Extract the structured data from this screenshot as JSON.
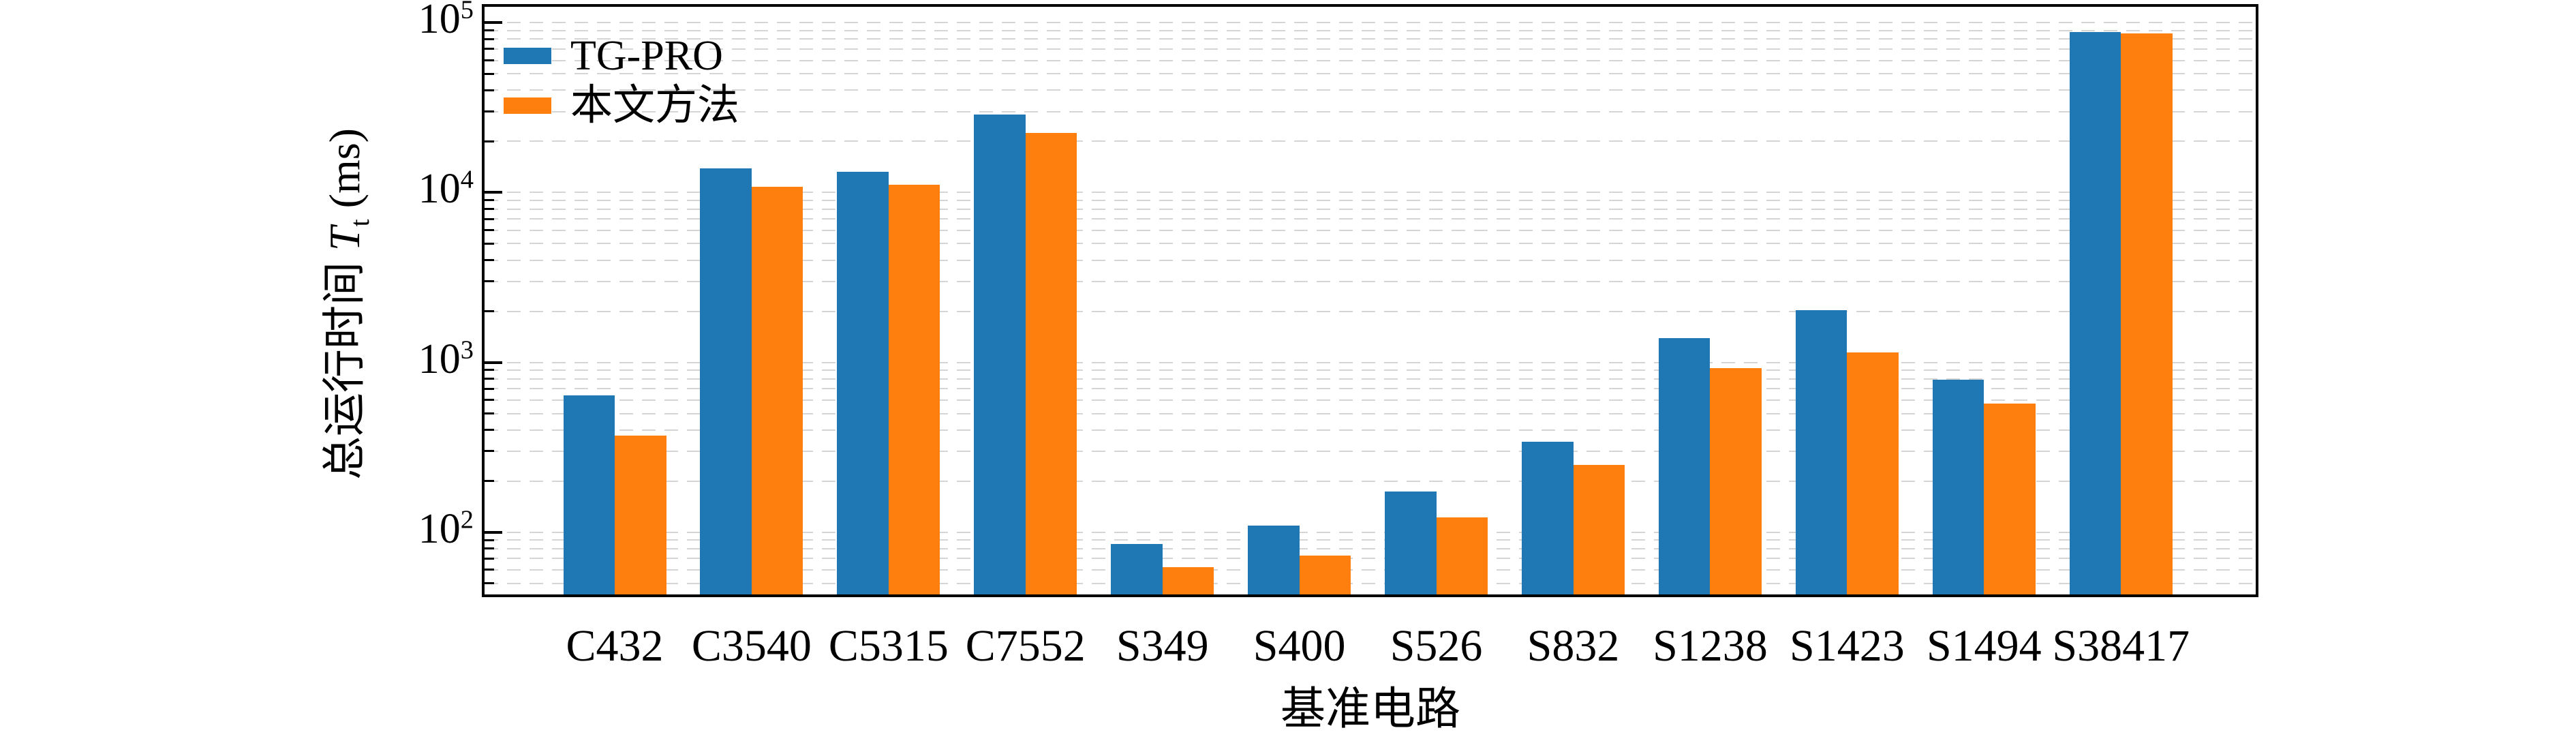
{
  "chart_data": {
    "type": "bar",
    "categories": [
      "C432",
      "C3540",
      "C5315",
      "C7552",
      "S349",
      "S400",
      "S526",
      "S832",
      "S1238",
      "S1423",
      "S1494",
      "S38417"
    ],
    "series": [
      {
        "name": "TG-PRO",
        "color": "#1f77b4",
        "values": [
          640,
          13900,
          13200,
          28900,
          85,
          109,
          173,
          341,
          1390,
          2020,
          790,
          88000
        ]
      },
      {
        "name": "本文方法",
        "color": "#ff7f0e",
        "values": [
          370,
          10800,
          11100,
          22500,
          62,
          73,
          122,
          248,
          927,
          1148,
          570,
          86500
        ]
      }
    ],
    "xlabel": "基准电路",
    "ylabel_parts": {
      "text": "总运行时间 ",
      "symbol": "T",
      "sub": "t",
      "unit": " (ms)"
    },
    "yscale": "log",
    "ylim": [
      43,
      124000
    ],
    "y_ticks": [
      {
        "value": 100,
        "base": "10",
        "exp": "2"
      },
      {
        "value": 1000,
        "base": "10",
        "exp": "3"
      },
      {
        "value": 10000,
        "base": "10",
        "exp": "4"
      },
      {
        "value": 100000,
        "base": "10",
        "exp": "5"
      }
    ],
    "grid": "horizontal dashed, major and minor log ticks",
    "legend_position": "upper left",
    "grid_color": "#d5d5d5",
    "spine_color": "#000000"
  }
}
